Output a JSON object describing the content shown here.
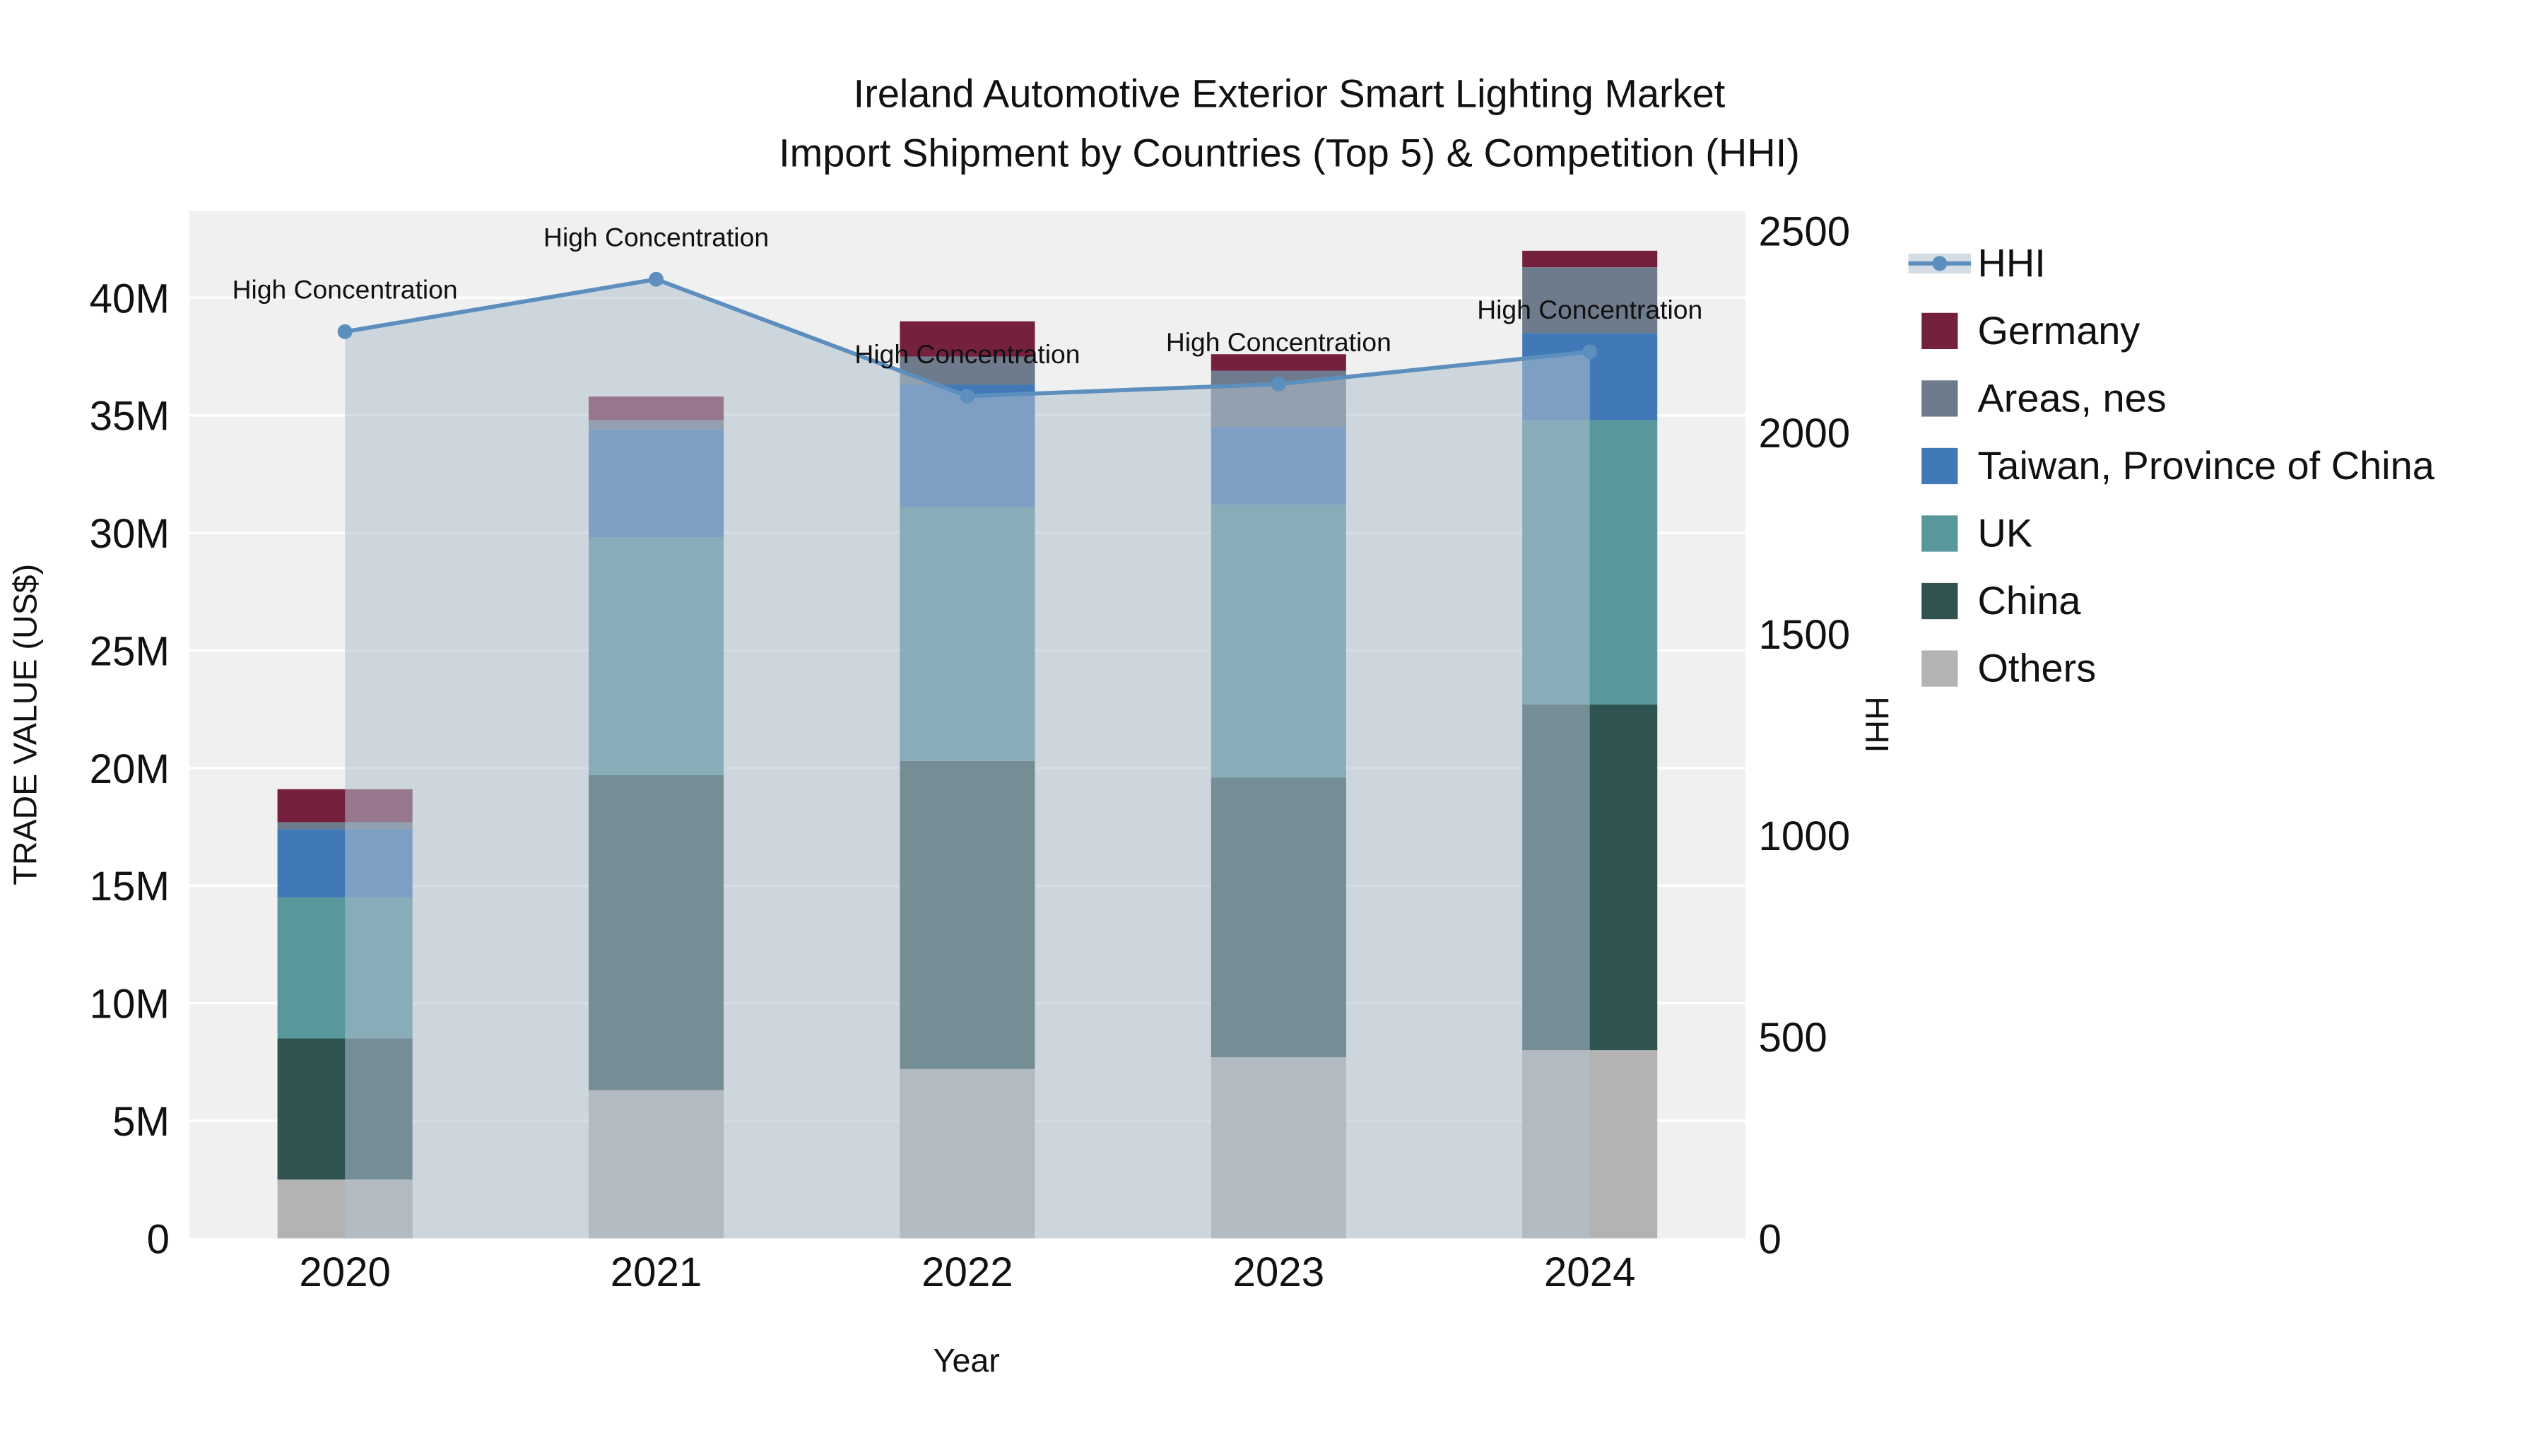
{
  "title": {
    "line1": "Ireland Automotive Exterior Smart Lighting Market",
    "line2": "Import Shipment by Countries (Top 5) & Competition (HHI)"
  },
  "chart_data": {
    "type": "combo-stacked-bar-line",
    "categories": [
      "2020",
      "2021",
      "2022",
      "2023",
      "2024"
    ],
    "xlabel": "Year",
    "ylabel_left": "TRADE VALUE (US$)",
    "ylabel_right": "HHI",
    "ylim_left": [
      0,
      43.7
    ],
    "ylim_right": [
      0,
      2550
    ],
    "y_left_ticks": {
      "values": [
        0,
        5,
        10,
        15,
        20,
        25,
        30,
        35,
        40
      ],
      "labels": [
        "0",
        "5M",
        "10M",
        "15M",
        "20M",
        "25M",
        "30M",
        "35M",
        "40M"
      ]
    },
    "y_right_ticks": {
      "values": [
        0,
        500,
        1000,
        1500,
        2000,
        2500
      ],
      "labels": [
        "0",
        "500",
        "1000",
        "1500",
        "2000",
        "2500"
      ]
    },
    "bar_unit": "Million US$",
    "bar_series": [
      {
        "name": "Others",
        "color": "#b3b3b3",
        "values": [
          2.5,
          6.3,
          7.2,
          7.7,
          8.0
        ]
      },
      {
        "name": "China",
        "color": "#2e5351",
        "values": [
          6.0,
          13.4,
          13.1,
          11.9,
          14.7
        ]
      },
      {
        "name": "UK",
        "color": "#58989d",
        "values": [
          6.0,
          10.1,
          10.8,
          11.6,
          12.1
        ]
      },
      {
        "name": "Taiwan, Province of China",
        "color": "#4179b8",
        "values": [
          2.9,
          4.6,
          5.2,
          3.3,
          3.7
        ]
      },
      {
        "name": "Areas, nes",
        "color": "#6e7b8c",
        "values": [
          0.3,
          0.4,
          1.2,
          2.4,
          2.8
        ]
      },
      {
        "name": "Germany",
        "color": "#76203f",
        "values": [
          1.4,
          1.0,
          1.5,
          0.7,
          0.7
        ]
      }
    ],
    "line_series": {
      "name": "HHI",
      "color": "#5d8fbe",
      "fill_color": "rgba(176,191,205,0.55)",
      "values": [
        2250,
        2380,
        2090,
        2120,
        2200
      ]
    },
    "annotations": [
      {
        "category": "2020",
        "text": "High Concentration"
      },
      {
        "category": "2021",
        "text": "High Concentration"
      },
      {
        "category": "2022",
        "text": "High Concentration"
      },
      {
        "category": "2023",
        "text": "High Concentration"
      },
      {
        "category": "2024",
        "text": "High Concentration"
      }
    ],
    "legend_order": [
      "HHI",
      "Germany",
      "Areas, nes",
      "Taiwan, Province of China",
      "UK",
      "China",
      "Others"
    ],
    "plot_bg": "#f0f0f0",
    "grid_color": "#ffffff"
  }
}
